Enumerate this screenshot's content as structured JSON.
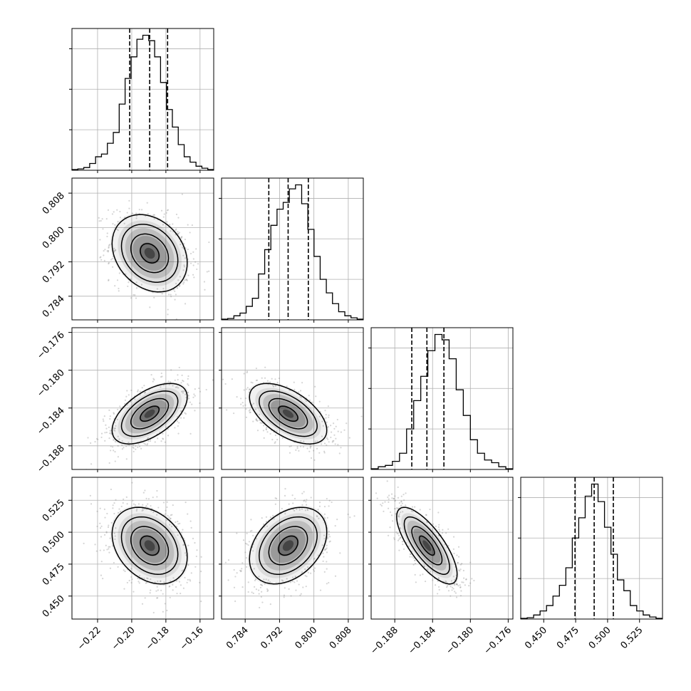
{
  "chart_data": {
    "type": "corner",
    "grid": true,
    "n_params": 4,
    "params": [
      {
        "index": 0,
        "range": [
          -0.235,
          -0.152
        ],
        "ticks": [
          -0.22,
          -0.2,
          -0.18,
          -0.16
        ],
        "tick_labels": [
          "−0.22",
          "−0.20",
          "−0.18",
          "−0.16"
        ],
        "quantiles": [
          -0.2012,
          -0.1895,
          -0.179
        ],
        "hist_counts": [
          0.005,
          0.01,
          0.02,
          0.05,
          0.1,
          0.12,
          0.2,
          0.28,
          0.49,
          0.68,
          0.84,
          0.97,
          1.0,
          0.96,
          0.84,
          0.65,
          0.45,
          0.32,
          0.19,
          0.1,
          0.06,
          0.03,
          0.015,
          0.005
        ],
        "hist_ymax": 1.05,
        "hist_yticks": [
          0.3,
          0.6,
          0.9
        ]
      },
      {
        "index": 1,
        "range": [
          0.7785,
          0.8115
        ],
        "ticks": [
          0.784,
          0.792,
          0.8,
          0.808
        ],
        "tick_labels": [
          "0.784",
          "0.792",
          "0.800",
          "0.808"
        ],
        "quantiles": [
          0.7895,
          0.794,
          0.7987
        ],
        "hist_counts": [
          0.005,
          0.01,
          0.03,
          0.05,
          0.1,
          0.16,
          0.34,
          0.52,
          0.7,
          0.82,
          0.87,
          0.97,
          1.0,
          0.86,
          0.67,
          0.47,
          0.3,
          0.2,
          0.12,
          0.06,
          0.03,
          0.015,
          0.005
        ],
        "hist_ymax": 1.05,
        "hist_yticks": [
          0.3,
          0.6,
          0.9
        ]
      },
      {
        "index": 2,
        "range": [
          -0.1905,
          -0.1755
        ],
        "ticks": [
          -0.188,
          -0.184,
          -0.18,
          -0.176
        ],
        "tick_labels": [
          "−0.188",
          "−0.184",
          "−0.180",
          "−0.176"
        ],
        "quantiles": [
          -0.1862,
          -0.1846,
          -0.1828
        ],
        "hist_counts": [
          0.005,
          0.02,
          0.03,
          0.06,
          0.12,
          0.3,
          0.51,
          0.69,
          0.88,
          1.0,
          0.96,
          0.82,
          0.59,
          0.4,
          0.22,
          0.12,
          0.07,
          0.05,
          0.02,
          0.005
        ],
        "hist_ymax": 1.05,
        "hist_yticks": [
          0.3,
          0.6,
          0.9
        ]
      },
      {
        "index": 3,
        "range": [
          0.432,
          0.543
        ],
        "ticks": [
          0.45,
          0.475,
          0.5,
          0.525
        ],
        "tick_labels": [
          "0.450",
          "0.475",
          "0.500",
          "0.525"
        ],
        "quantiles": [
          0.4745,
          0.4895,
          0.5045
        ],
        "hist_counts": [
          0.005,
          0.01,
          0.03,
          0.06,
          0.1,
          0.17,
          0.25,
          0.38,
          0.6,
          0.75,
          0.91,
          1.0,
          0.87,
          0.68,
          0.48,
          0.29,
          0.21,
          0.1,
          0.06,
          0.03,
          0.015,
          0.005
        ],
        "hist_ymax": 1.05,
        "hist_yticks": [
          0.3,
          0.6,
          0.9
        ]
      }
    ],
    "pairs": [
      {
        "x": 0,
        "y": 1,
        "center": [
          -0.1895,
          0.794
        ],
        "sd": [
          0.011,
          0.0045
        ],
        "corr": -0.25
      },
      {
        "x": 0,
        "y": 2,
        "center": [
          -0.1895,
          -0.1846
        ],
        "sd": [
          0.011,
          0.0016
        ],
        "corr": 0.55
      },
      {
        "x": 1,
        "y": 2,
        "center": [
          0.794,
          -0.1846
        ],
        "sd": [
          0.0045,
          0.0016
        ],
        "corr": -0.55
      },
      {
        "x": 0,
        "y": 3,
        "center": [
          -0.1895,
          0.4895
        ],
        "sd": [
          0.011,
          0.015
        ],
        "corr": -0.3
      },
      {
        "x": 1,
        "y": 3,
        "center": [
          0.794,
          0.4895
        ],
        "sd": [
          0.0045,
          0.015
        ],
        "corr": 0.35
      },
      {
        "x": 2,
        "y": 3,
        "center": [
          -0.1846,
          0.4895
        ],
        "sd": [
          0.0016,
          0.015
        ],
        "corr": -0.75
      }
    ]
  }
}
